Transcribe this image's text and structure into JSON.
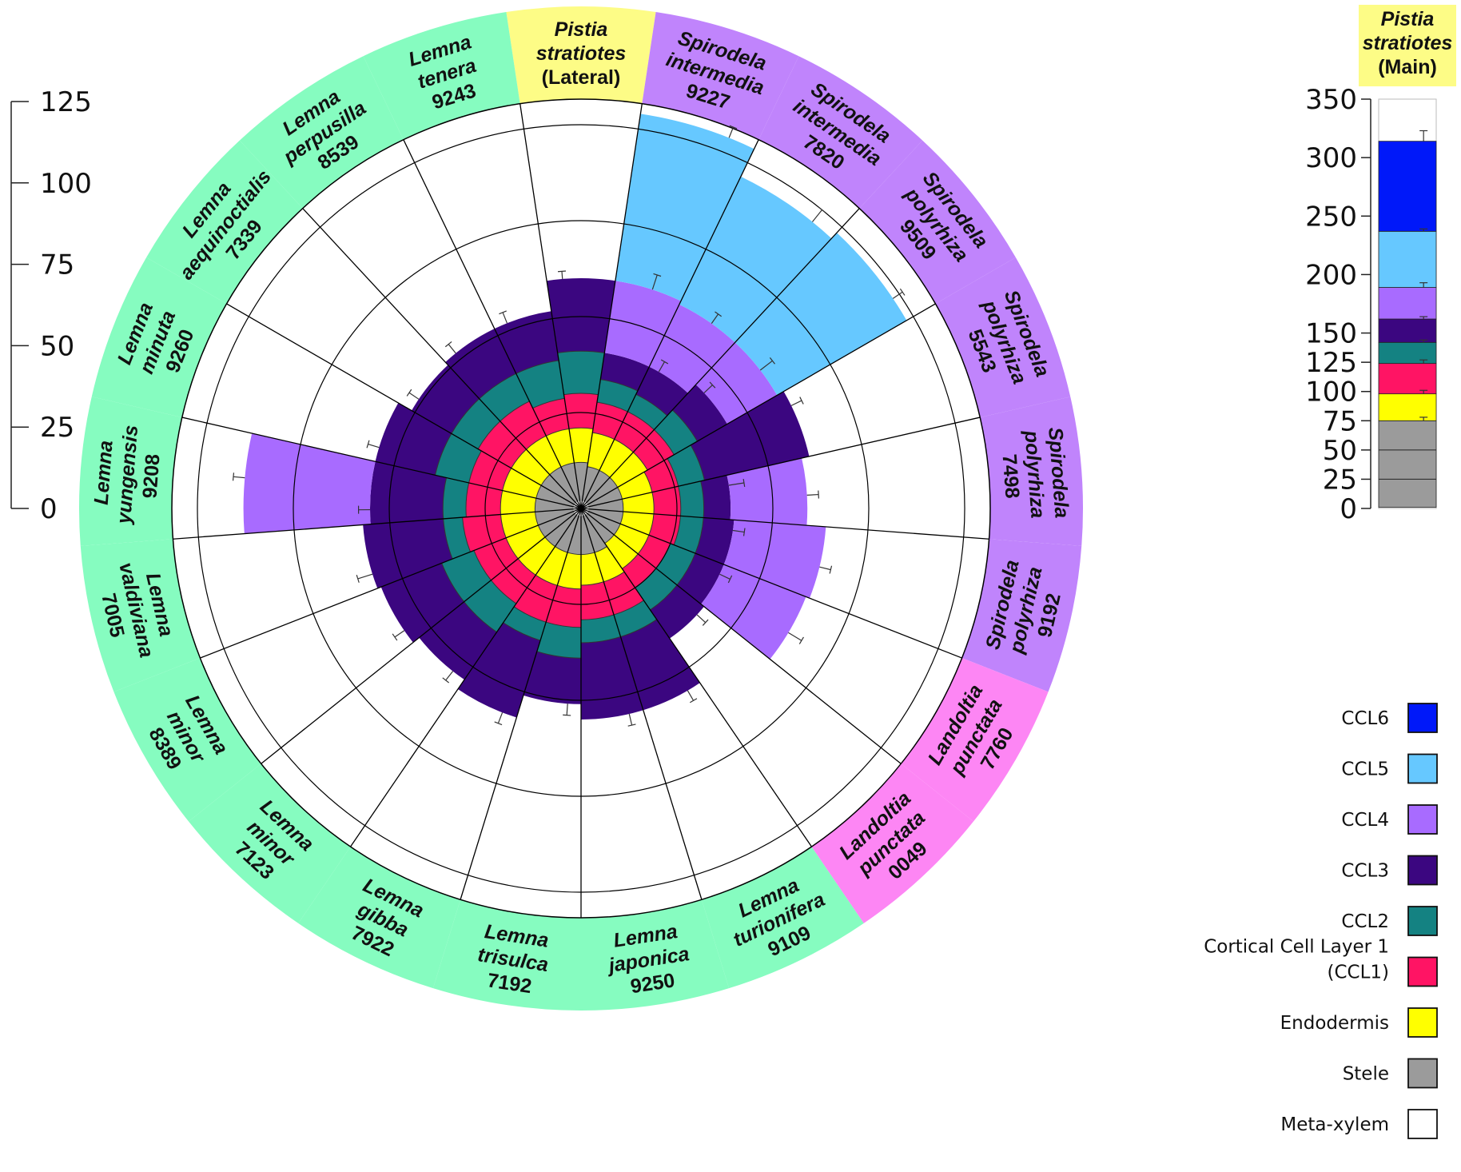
{
  "chart_data": [
    {
      "type": "radial-stacked-bar",
      "scale": {
        "ticks": [
          0,
          25,
          50,
          75,
          100,
          125
        ],
        "max": 125
      },
      "layers": [
        "Meta-xylem",
        "Stele",
        "Endodermis",
        "Cortical Cell Layer 1 (CCL1)",
        "CCL2",
        "CCL3",
        "CCL4",
        "CCL5",
        "CCL6"
      ],
      "groups": [
        {
          "name": "Lemna",
          "color": "#86fcc0"
        },
        {
          "name": "Pistia",
          "color": "#fdfc86"
        },
        {
          "name": "Spirodela",
          "color": "#c084fc"
        },
        {
          "name": "Landoltia",
          "color": "#fd86f4"
        }
      ],
      "categories": [
        {
          "lines": [
            "Pistia",
            "stratiotes",
            "(Lateral)"
          ],
          "italic_lines": 2,
          "group": "Pistia",
          "cumulative": [
            2,
            12,
            21,
            30,
            41,
            60,
            null,
            null,
            null
          ],
          "err": [
            null,
            null,
            null,
            null,
            null,
            2,
            null,
            null,
            null
          ]
        },
        {
          "lines": [
            "Spirodela",
            "intermedia",
            "9227"
          ],
          "italic_lines": 2,
          "group": "Spirodela",
          "cumulative": [
            2,
            11,
            20,
            28,
            34,
            41,
            60,
            104,
            null
          ],
          "err": [
            null,
            null,
            null,
            null,
            null,
            null,
            4,
            3,
            null
          ]
        },
        {
          "lines": [
            "Spirodela",
            "intermedia",
            "7820"
          ],
          "italic_lines": 2,
          "group": "Spirodela",
          "cumulative": [
            2,
            11,
            20,
            28,
            33,
            41,
            59,
            96,
            null
          ],
          "err": [
            null,
            null,
            null,
            null,
            null,
            3,
            3,
            4,
            null
          ]
        },
        {
          "lines": [
            "Spirodela",
            "polyrhiza",
            "9509"
          ],
          "italic_lines": 2,
          "group": "Spirodela",
          "cumulative": [
            2,
            11,
            20,
            28,
            35,
            44,
            59,
            98,
            null
          ],
          "err": [
            null,
            null,
            null,
            null,
            null,
            3,
            4,
            3,
            null
          ]
        },
        {
          "lines": [
            "Spirodela",
            "polyrhiza",
            "5543"
          ],
          "italic_lines": 2,
          "group": "Spirodela",
          "cumulative": [
            2,
            11,
            19,
            26,
            33,
            61,
            null,
            null,
            null
          ],
          "err": [
            null,
            null,
            null,
            null,
            null,
            3,
            null,
            null,
            null
          ]
        },
        {
          "lines": [
            "Spirodela",
            "polyrhiza",
            "7498"
          ],
          "italic_lines": 2,
          "group": "Spirodela",
          "cumulative": [
            2,
            11,
            19,
            26,
            32,
            39,
            59,
            null,
            null
          ],
          "err": [
            null,
            null,
            null,
            null,
            null,
            4,
            3,
            null,
            null
          ]
        },
        {
          "lines": [
            "Spirodela",
            "polyrhiza",
            "9192"
          ],
          "italic_lines": 2,
          "group": "Spirodela",
          "cumulative": [
            2,
            11,
            19,
            26,
            32,
            40,
            64,
            null,
            null
          ],
          "err": [
            null,
            null,
            null,
            null,
            null,
            3,
            3,
            null,
            null
          ]
        },
        {
          "lines": [
            "Landoltia",
            "punctata",
            "7760"
          ],
          "italic_lines": 2,
          "group": "Landoltia",
          "cumulative": [
            2,
            11,
            19,
            25,
            32,
            40,
            63,
            null,
            null
          ],
          "err": [
            null,
            null,
            null,
            null,
            null,
            3,
            4,
            null,
            null
          ]
        },
        {
          "lines": [
            "Landoltia",
            "punctata",
            "0049"
          ],
          "italic_lines": 2,
          "group": "Landoltia",
          "cumulative": [
            2,
            11,
            19,
            25,
            32,
            41,
            null,
            null,
            null
          ],
          "err": [
            null,
            null,
            null,
            null,
            null,
            3,
            null,
            null,
            null
          ]
        },
        {
          "lines": [
            "Lemna",
            "turionifera",
            "9109"
          ],
          "italic_lines": 2,
          "group": "Lemna",
          "cumulative": [
            2,
            12,
            20,
            29,
            35,
            55,
            null,
            null,
            null
          ],
          "err": [
            null,
            null,
            null,
            null,
            null,
            3,
            null,
            null,
            null
          ]
        },
        {
          "lines": [
            "Lemna",
            "japonica",
            "9250"
          ],
          "italic_lines": 2,
          "group": "Lemna",
          "cumulative": [
            2,
            12,
            20,
            29,
            35,
            55,
            null,
            null,
            null
          ],
          "err": [
            null,
            null,
            null,
            null,
            null,
            3,
            null,
            null,
            null
          ]
        },
        {
          "lines": [
            "Lemna",
            "trisulca",
            "7192"
          ],
          "italic_lines": 2,
          "group": "Lemna",
          "cumulative": [
            2,
            12,
            21,
            31,
            39,
            51,
            null,
            null,
            null
          ],
          "err": [
            null,
            null,
            null,
            null,
            null,
            3,
            null,
            null,
            null
          ]
        },
        {
          "lines": [
            "Lemna",
            "gibba",
            "7922"
          ],
          "italic_lines": 2,
          "group": "Lemna",
          "cumulative": [
            2,
            12,
            21,
            31,
            36,
            57,
            null,
            null,
            null
          ],
          "err": [
            null,
            null,
            null,
            null,
            null,
            3,
            null,
            null,
            null
          ]
        },
        {
          "lines": [
            "Lemna",
            "minor",
            "7123"
          ],
          "italic_lines": 2,
          "group": "Lemna",
          "cumulative": [
            2,
            12,
            21,
            30,
            39,
            54,
            null,
            null,
            null
          ],
          "err": [
            null,
            null,
            null,
            null,
            null,
            3,
            null,
            null,
            null
          ]
        },
        {
          "lines": [
            "Lemna",
            "minor",
            "8389"
          ],
          "italic_lines": 2,
          "group": "Lemna",
          "cumulative": [
            2,
            12,
            21,
            30,
            39,
            56,
            null,
            null,
            null
          ],
          "err": [
            null,
            null,
            null,
            null,
            null,
            3,
            null,
            null,
            null
          ]
        },
        {
          "lines": [
            "Lemna",
            "valdiviana",
            "7005"
          ],
          "italic_lines": 2,
          "group": "Lemna",
          "cumulative": [
            2,
            12,
            21,
            31,
            36,
            57,
            null,
            null,
            null
          ],
          "err": [
            null,
            null,
            null,
            null,
            null,
            4,
            null,
            null,
            null
          ]
        },
        {
          "lines": [
            "Lemna",
            "yungensis",
            "9208"
          ],
          "italic_lines": 2,
          "group": "Lemna",
          "cumulative": [
            2,
            12,
            21,
            30,
            36,
            55,
            88,
            null,
            null
          ],
          "err": [
            null,
            null,
            null,
            null,
            null,
            3,
            3,
            null,
            null
          ]
        },
        {
          "lines": [
            "Lemna",
            "minuta",
            "9260"
          ],
          "italic_lines": 2,
          "group": "Lemna",
          "cumulative": [
            2,
            12,
            21,
            30,
            39,
            55,
            null,
            null,
            null
          ],
          "err": [
            null,
            null,
            null,
            null,
            null,
            3,
            null,
            null,
            null
          ]
        },
        {
          "lines": [
            "Lemna",
            "aequinoctialis",
            "7339"
          ],
          "italic_lines": 2,
          "group": "Lemna",
          "cumulative": [
            2,
            12,
            21,
            31,
            39,
            51,
            null,
            null,
            null
          ],
          "err": [
            null,
            null,
            null,
            null,
            null,
            3,
            null,
            null,
            null
          ]
        },
        {
          "lines": [
            "Lemna",
            "perpusilla",
            "8539"
          ],
          "italic_lines": 2,
          "group": "Lemna",
          "cumulative": [
            2,
            12,
            21,
            31,
            39,
            52,
            null,
            null,
            null
          ],
          "err": [
            null,
            null,
            null,
            null,
            null,
            3,
            null,
            null,
            null
          ]
        },
        {
          "lines": [
            "Lemna",
            "tenera",
            "9243"
          ],
          "italic_lines": 2,
          "group": "Lemna",
          "cumulative": [
            2,
            12,
            21,
            29,
            39,
            52,
            null,
            null,
            null
          ],
          "err": [
            null,
            null,
            null,
            null,
            null,
            3,
            null,
            null,
            null
          ]
        }
      ]
    },
    {
      "type": "stacked-bar",
      "title_lines": [
        "Pistia",
        "stratiotes",
        "(Main)"
      ],
      "ticks": [
        0,
        25,
        50,
        75,
        100,
        125,
        150,
        200,
        250,
        300,
        350
      ],
      "ylim": [
        0,
        350
      ],
      "stele_lines": [
        25,
        50
      ],
      "cumulative": [
        1,
        75,
        98,
        124,
        142,
        162,
        189,
        237,
        314
      ],
      "err": [
        null,
        3,
        3,
        3,
        2,
        2,
        4,
        2,
        9
      ]
    }
  ],
  "legend": [
    {
      "label": "CCL6",
      "color": "#0018f9"
    },
    {
      "label": "CCL5",
      "color": "#66c8ff"
    },
    {
      "label": "CCL4",
      "color": "#a86bff"
    },
    {
      "label": "CCL3",
      "color": "#3b0680"
    },
    {
      "label": "CCL2",
      "color": "#148282"
    },
    {
      "label_lines": [
        "Cortical Cell Layer 1",
        "(CCL1)"
      ],
      "color": "#ff1464"
    },
    {
      "label": "Endodermis",
      "color": "#ffff00"
    },
    {
      "label": "Stele",
      "color": "#9b9b9b"
    },
    {
      "label": "Meta-xylem",
      "color": "#ffffff"
    }
  ],
  "layer_colors": [
    "#ffffff",
    "#9b9b9b",
    "#ffff00",
    "#ff1464",
    "#148282",
    "#3b0680",
    "#a86bff",
    "#66c8ff",
    "#0018f9"
  ]
}
